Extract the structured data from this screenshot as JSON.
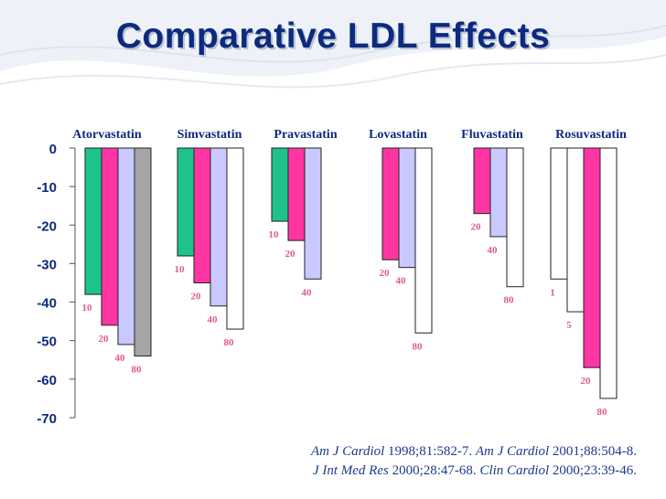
{
  "title": "Comparative LDL Effects",
  "chart_data": {
    "type": "bar",
    "ylim": [
      -70,
      0
    ],
    "yticks": [
      0,
      -10,
      -20,
      -30,
      -40,
      -50,
      -60,
      -70
    ],
    "dose_colors": {
      "1": "#ffffff",
      "5": "#ffffff",
      "10": "#1fc18c",
      "20": "#ff35a4",
      "40": "#c9c9ff",
      "80": "#ffffff"
    },
    "groups": [
      {
        "name": "Atorvastatin",
        "bars": [
          {
            "dose": "10",
            "value": -38
          },
          {
            "dose": "20",
            "value": -46
          },
          {
            "dose": "40",
            "value": -51
          },
          {
            "dose": "80",
            "value": -54,
            "color": "#a6a6a6"
          }
        ]
      },
      {
        "name": "Simvastatin",
        "bars": [
          {
            "dose": "10",
            "value": -28
          },
          {
            "dose": "20",
            "value": -35
          },
          {
            "dose": "40",
            "value": -41
          },
          {
            "dose": "80",
            "value": -47
          }
        ]
      },
      {
        "name": "Pravastatin",
        "bars": [
          {
            "dose": "10",
            "value": -19
          },
          {
            "dose": "20",
            "value": -24
          },
          {
            "dose": "40",
            "value": -34
          }
        ]
      },
      {
        "name": "Lovastatin",
        "bars": [
          {
            "dose": "20",
            "value": -29
          },
          {
            "dose": "40",
            "value": -31
          },
          {
            "dose": "80",
            "value": -48
          }
        ]
      },
      {
        "name": "Fluvastatin",
        "bars": [
          {
            "dose": "20",
            "value": -17
          },
          {
            "dose": "40",
            "value": -23
          },
          {
            "dose": "80",
            "value": -36
          }
        ]
      },
      {
        "name": "Rosuvastatin",
        "bars": [
          {
            "dose": "1",
            "value": -34
          },
          {
            "dose": "5",
            "value": -42.5
          },
          {
            "dose": "20",
            "value": -57
          },
          {
            "dose": "80",
            "value": -65
          }
        ]
      }
    ]
  },
  "citation": {
    "line1": [
      {
        "journal": "Am J Cardiol",
        "ref": " 1998;81:582-7.  "
      },
      {
        "journal": "Am J Cardiol",
        "ref": " 2001;88:504-8."
      }
    ],
    "line2": [
      {
        "journal": "J Int Med Res",
        "ref": " 2000;28:47-68.  "
      },
      {
        "journal": "Clin Cardiol",
        "ref": " 2000;23:39-46."
      }
    ]
  }
}
